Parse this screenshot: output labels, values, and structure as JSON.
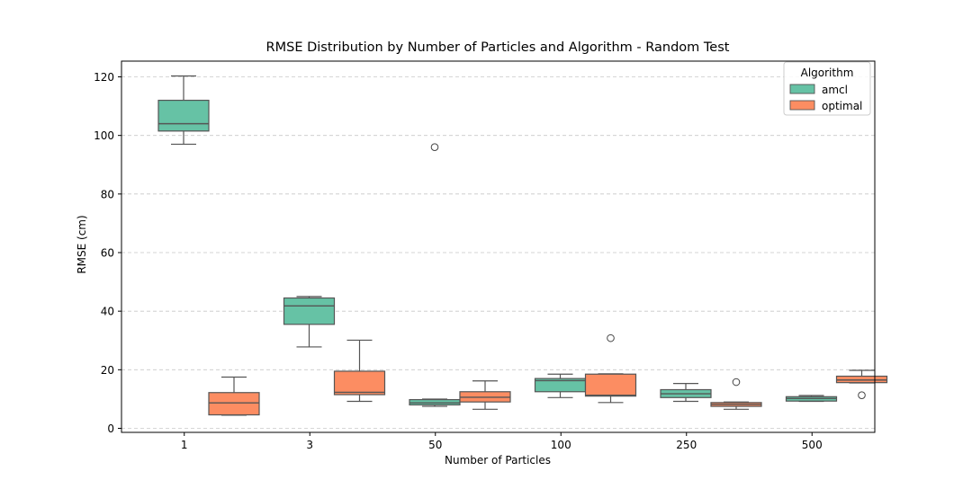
{
  "chart_data": {
    "type": "boxplot",
    "title": "RMSE Distribution by Number of Particles and Algorithm - Random Test",
    "xlabel": "Number of Particles",
    "ylabel": "RMSE (cm)",
    "ylim": [
      -1,
      126
    ],
    "yticks": [
      0,
      20,
      40,
      60,
      80,
      100,
      120
    ],
    "grid": "y-dashed",
    "categories": [
      "1",
      "3",
      "50",
      "100",
      "250",
      "500"
    ],
    "legend": {
      "title": "Algorithm",
      "position": "top-right"
    },
    "series": [
      {
        "name": "amcl",
        "color": "#66c2a5",
        "boxes": [
          {
            "whislo": 97,
            "q1": 101.5,
            "med": 104,
            "q3": 112,
            "whishi": 120.3,
            "fliers": []
          },
          {
            "whislo": 27.8,
            "q1": 35.5,
            "med": 41.8,
            "q3": 44.5,
            "whishi": 45,
            "fliers": []
          },
          {
            "whislo": 7.5,
            "q1": 8,
            "med": 8.7,
            "q3": 9.8,
            "whishi": 10,
            "fliers": [
              96
            ]
          },
          {
            "whislo": 10.5,
            "q1": 12.5,
            "med": 16.3,
            "q3": 17,
            "whishi": 18.5,
            "fliers": []
          },
          {
            "whislo": 9.2,
            "q1": 10.5,
            "med": 11.8,
            "q3": 13.2,
            "whishi": 15.3,
            "fliers": []
          },
          {
            "whislo": 9.2,
            "q1": 9.3,
            "med": 10.2,
            "q3": 10.8,
            "whishi": 11.2,
            "fliers": []
          }
        ]
      },
      {
        "name": "optimal",
        "color": "#fc8d62",
        "boxes": [
          {
            "whislo": 4.5,
            "q1": 4.6,
            "med": 8.7,
            "q3": 12.2,
            "whishi": 17.5,
            "fliers": []
          },
          {
            "whislo": 9.2,
            "q1": 11.5,
            "med": 12.3,
            "q3": 19.5,
            "whishi": 30.1,
            "fliers": []
          },
          {
            "whislo": 6.5,
            "q1": 9,
            "med": 10.6,
            "q3": 12.5,
            "whishi": 16.2,
            "fliers": []
          },
          {
            "whislo": 8.8,
            "q1": 11,
            "med": 11.3,
            "q3": 18.5,
            "whishi": 18.6,
            "fliers": [
              30.8
            ]
          },
          {
            "whislo": 6.5,
            "q1": 7.5,
            "med": 8.2,
            "q3": 8.8,
            "whishi": 9,
            "fliers": [
              15.8
            ]
          },
          {
            "whislo": 15.5,
            "q1": 15.6,
            "med": 16.5,
            "q3": 17.8,
            "whishi": 19.8,
            "fliers": [
              11.3
            ]
          }
        ]
      }
    ]
  }
}
